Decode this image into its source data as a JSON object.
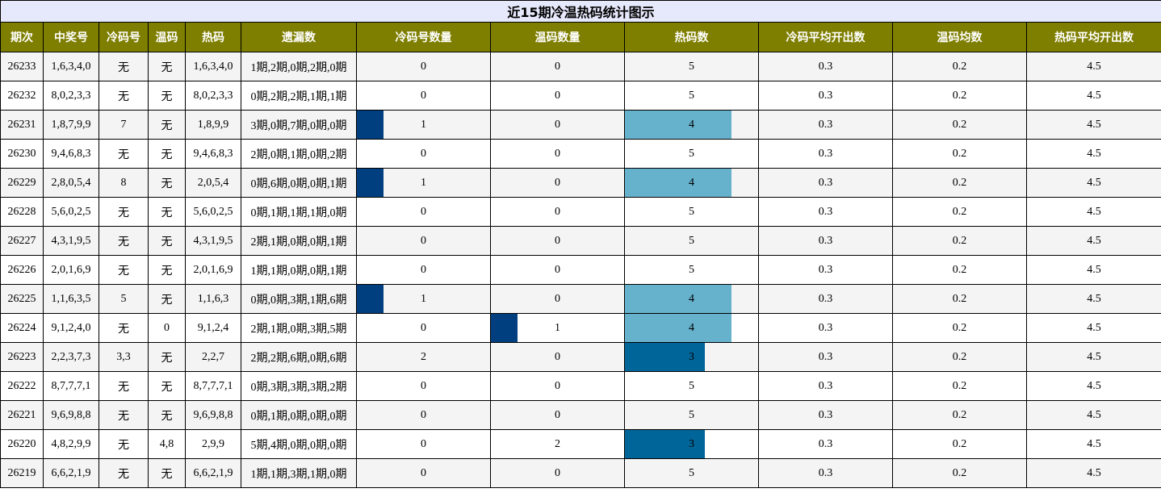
{
  "title": "近15期冷温热码统计图示",
  "headers": [
    "期次",
    "中奖号",
    "冷码号",
    "温码",
    "热码",
    "遗漏数",
    "冷码号数量",
    "温码数量",
    "热码数",
    "冷码平均开出数",
    "温码均数",
    "热码平均开出数"
  ],
  "colors": {
    "header_bg": "#7e7e00",
    "title_bg": "#e6e8fb",
    "cold_bar": "#003f7f",
    "warm_bar": "#003f7f",
    "hot_bar_4": "#66b2cc",
    "hot_bar_3": "#00669a"
  },
  "scale_max": {
    "cold": 5,
    "warm": 5,
    "hot": 5
  },
  "rows": [
    {
      "period": "26233",
      "numbers": "1,6,3,4,0",
      "cold": "无",
      "warm": "无",
      "hot": "1,6,3,4,0",
      "miss": "1期,2期,0期,2期,0期",
      "cold_count": 0,
      "warm_count": 0,
      "hot_count": 5,
      "cold_avg": "0.3",
      "warm_avg": "0.2",
      "hot_avg": "4.5"
    },
    {
      "period": "26232",
      "numbers": "8,0,2,3,3",
      "cold": "无",
      "warm": "无",
      "hot": "8,0,2,3,3",
      "miss": "0期,2期,2期,1期,1期",
      "cold_count": 0,
      "warm_count": 0,
      "hot_count": 5,
      "cold_avg": "0.3",
      "warm_avg": "0.2",
      "hot_avg": "4.5"
    },
    {
      "period": "26231",
      "numbers": "1,8,7,9,9",
      "cold": "7",
      "warm": "无",
      "hot": "1,8,9,9",
      "miss": "3期,0期,7期,0期,0期",
      "cold_count": 1,
      "warm_count": 0,
      "hot_count": 4,
      "cold_avg": "0.3",
      "warm_avg": "0.2",
      "hot_avg": "4.5"
    },
    {
      "period": "26230",
      "numbers": "9,4,6,8,3",
      "cold": "无",
      "warm": "无",
      "hot": "9,4,6,8,3",
      "miss": "2期,0期,1期,0期,2期",
      "cold_count": 0,
      "warm_count": 0,
      "hot_count": 5,
      "cold_avg": "0.3",
      "warm_avg": "0.2",
      "hot_avg": "4.5"
    },
    {
      "period": "26229",
      "numbers": "2,8,0,5,4",
      "cold": "8",
      "warm": "无",
      "hot": "2,0,5,4",
      "miss": "0期,6期,0期,0期,1期",
      "cold_count": 1,
      "warm_count": 0,
      "hot_count": 4,
      "cold_avg": "0.3",
      "warm_avg": "0.2",
      "hot_avg": "4.5"
    },
    {
      "period": "26228",
      "numbers": "5,6,0,2,5",
      "cold": "无",
      "warm": "无",
      "hot": "5,6,0,2,5",
      "miss": "0期,1期,1期,1期,0期",
      "cold_count": 0,
      "warm_count": 0,
      "hot_count": 5,
      "cold_avg": "0.3",
      "warm_avg": "0.2",
      "hot_avg": "4.5"
    },
    {
      "period": "26227",
      "numbers": "4,3,1,9,5",
      "cold": "无",
      "warm": "无",
      "hot": "4,3,1,9,5",
      "miss": "2期,1期,0期,0期,1期",
      "cold_count": 0,
      "warm_count": 0,
      "hot_count": 5,
      "cold_avg": "0.3",
      "warm_avg": "0.2",
      "hot_avg": "4.5"
    },
    {
      "period": "26226",
      "numbers": "2,0,1,6,9",
      "cold": "无",
      "warm": "无",
      "hot": "2,0,1,6,9",
      "miss": "1期,1期,0期,0期,1期",
      "cold_count": 0,
      "warm_count": 0,
      "hot_count": 5,
      "cold_avg": "0.3",
      "warm_avg": "0.2",
      "hot_avg": "4.5"
    },
    {
      "period": "26225",
      "numbers": "1,1,6,3,5",
      "cold": "5",
      "warm": "无",
      "hot": "1,1,6,3",
      "miss": "0期,0期,3期,1期,6期",
      "cold_count": 1,
      "warm_count": 0,
      "hot_count": 4,
      "cold_avg": "0.3",
      "warm_avg": "0.2",
      "hot_avg": "4.5"
    },
    {
      "period": "26224",
      "numbers": "9,1,2,4,0",
      "cold": "无",
      "warm": "0",
      "hot": "9,1,2,4",
      "miss": "2期,1期,0期,3期,5期",
      "cold_count": 0,
      "warm_count": 1,
      "hot_count": 4,
      "cold_avg": "0.3",
      "warm_avg": "0.2",
      "hot_avg": "4.5"
    },
    {
      "period": "26223",
      "numbers": "2,2,3,7,3",
      "cold": "3,3",
      "warm": "无",
      "hot": "2,2,7",
      "miss": "2期,2期,6期,0期,6期",
      "cold_count": 2,
      "warm_count": 0,
      "hot_count": 3,
      "cold_avg": "0.3",
      "warm_avg": "0.2",
      "hot_avg": "4.5"
    },
    {
      "period": "26222",
      "numbers": "8,7,7,7,1",
      "cold": "无",
      "warm": "无",
      "hot": "8,7,7,7,1",
      "miss": "0期,3期,3期,3期,2期",
      "cold_count": 0,
      "warm_count": 0,
      "hot_count": 5,
      "cold_avg": "0.3",
      "warm_avg": "0.2",
      "hot_avg": "4.5"
    },
    {
      "period": "26221",
      "numbers": "9,6,9,8,8",
      "cold": "无",
      "warm": "无",
      "hot": "9,6,9,8,8",
      "miss": "0期,1期,0期,0期,0期",
      "cold_count": 0,
      "warm_count": 0,
      "hot_count": 5,
      "cold_avg": "0.3",
      "warm_avg": "0.2",
      "hot_avg": "4.5"
    },
    {
      "period": "26220",
      "numbers": "4,8,2,9,9",
      "cold": "无",
      "warm": "4,8",
      "hot": "2,9,9",
      "miss": "5期,4期,0期,0期,0期",
      "cold_count": 0,
      "warm_count": 2,
      "hot_count": 3,
      "cold_avg": "0.3",
      "warm_avg": "0.2",
      "hot_avg": "4.5"
    },
    {
      "period": "26219",
      "numbers": "6,6,2,1,9",
      "cold": "无",
      "warm": "无",
      "hot": "6,6,2,1,9",
      "miss": "1期,1期,3期,1期,0期",
      "cold_count": 0,
      "warm_count": 0,
      "hot_count": 5,
      "cold_avg": "0.3",
      "warm_avg": "0.2",
      "hot_avg": "4.5"
    }
  ],
  "chart_data": {
    "type": "table",
    "title": "近15期冷温热码统计图示",
    "categories": [
      "26233",
      "26232",
      "26231",
      "26230",
      "26229",
      "26228",
      "26227",
      "26226",
      "26225",
      "26224",
      "26223",
      "26222",
      "26221",
      "26220",
      "26219"
    ],
    "series": [
      {
        "name": "冷码号数量",
        "values": [
          0,
          0,
          1,
          0,
          1,
          0,
          0,
          0,
          1,
          0,
          2,
          0,
          0,
          0,
          0
        ]
      },
      {
        "name": "温码数量",
        "values": [
          0,
          0,
          0,
          0,
          0,
          0,
          0,
          0,
          0,
          1,
          0,
          0,
          0,
          2,
          0
        ]
      },
      {
        "name": "热码数",
        "values": [
          5,
          5,
          4,
          5,
          4,
          5,
          5,
          5,
          4,
          4,
          3,
          5,
          5,
          3,
          5
        ]
      }
    ]
  }
}
